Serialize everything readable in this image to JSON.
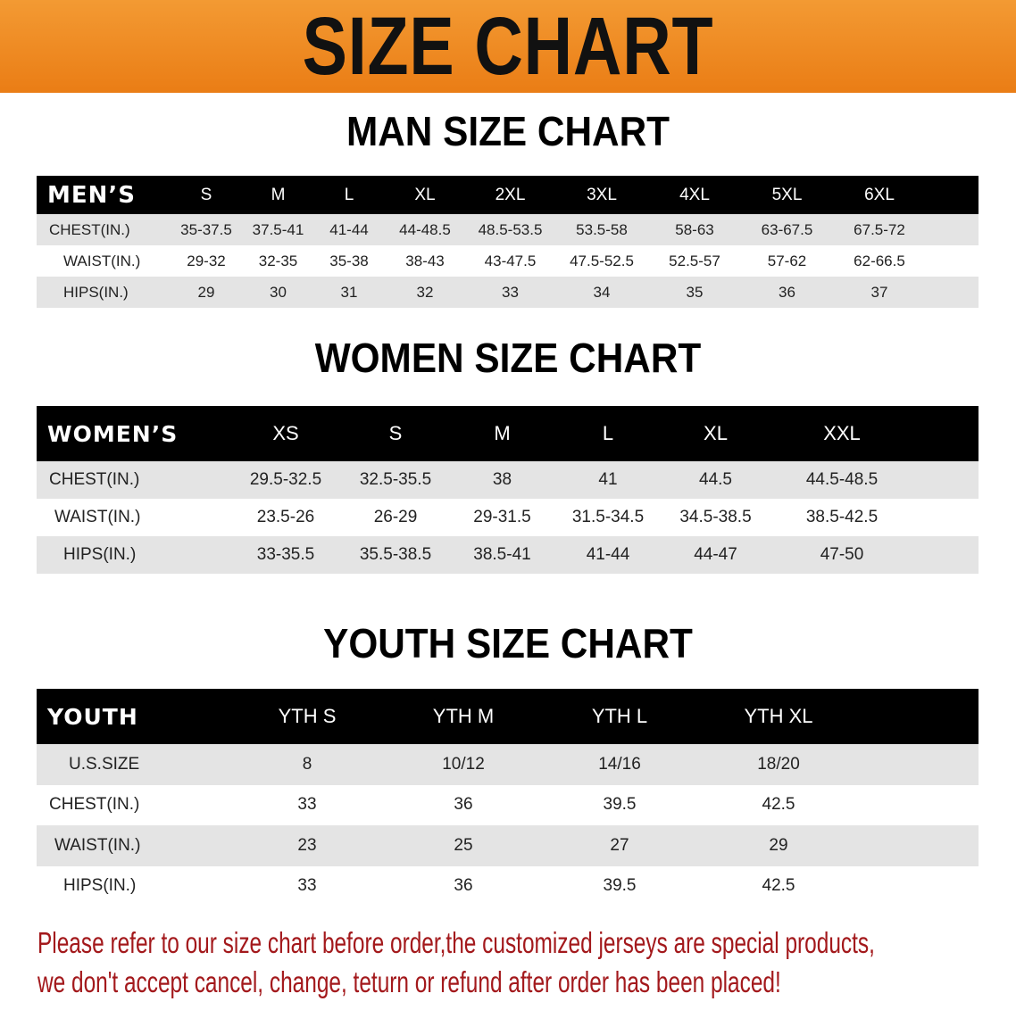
{
  "banner_title": "SIZE CHART",
  "men": {
    "title": "MAN SIZE CHART",
    "header": [
      "MEN’S",
      "S",
      "M",
      "L",
      "XL",
      "2XL",
      "3XL",
      "4XL",
      "5XL",
      "6XL"
    ],
    "rows": [
      [
        "CHEST(IN.)",
        "35-37.5",
        "37.5-41",
        "41-44",
        "44-48.5",
        "48.5-53.5",
        "53.5-58",
        "58-63",
        "63-67.5",
        "67.5-72"
      ],
      [
        "WAIST(IN.)",
        "29-32",
        "32-35",
        "35-38",
        "38-43",
        "43-47.5",
        "47.5-52.5",
        "52.5-57",
        "57-62",
        "62-66.5"
      ],
      [
        "HIPS(IN.)",
        "29",
        "30",
        "31",
        "32",
        "33",
        "34",
        "35",
        "36",
        "37"
      ]
    ]
  },
  "women": {
    "title": "WOMEN SIZE CHART",
    "header": [
      "WOMEN’S",
      "XS",
      "S",
      "M",
      "L",
      "XL",
      "XXL"
    ],
    "rows": [
      [
        "CHEST(IN.)",
        "29.5-32.5",
        "32.5-35.5",
        "38",
        "41",
        "44.5",
        "44.5-48.5"
      ],
      [
        "WAIST(IN.)",
        "23.5-26",
        "26-29",
        "29-31.5",
        "31.5-34.5",
        "34.5-38.5",
        "38.5-42.5"
      ],
      [
        "HIPS(IN.)",
        "33-35.5",
        "35.5-38.5",
        "38.5-41",
        "41-44",
        "44-47",
        "47-50"
      ]
    ]
  },
  "youth": {
    "title": "YOUTH SIZE CHART",
    "header": [
      "YOUTH",
      "YTH S",
      "YTH M",
      "YTH L",
      "YTH XL"
    ],
    "rows": [
      [
        "U.S.SIZE",
        "8",
        "10/12",
        "14/16",
        "18/20"
      ],
      [
        "CHEST(IN.)",
        "33",
        "36",
        "39.5",
        "42.5"
      ],
      [
        "WAIST(IN.)",
        "23",
        "25",
        "27",
        "29"
      ],
      [
        "HIPS(IN.)",
        "33",
        "36",
        "39.5",
        "42.5"
      ]
    ]
  },
  "notice": {
    "line1": "Please refer to our size chart before order,the customized jerseys are special products,",
    "line2": "we don't accept cancel, change, teturn or refund after order has been placed!"
  },
  "colors": {
    "banner": "#ee8a22",
    "header_row": "#000000",
    "stripe": "#e4e4e4",
    "notice": "#a3191c"
  }
}
